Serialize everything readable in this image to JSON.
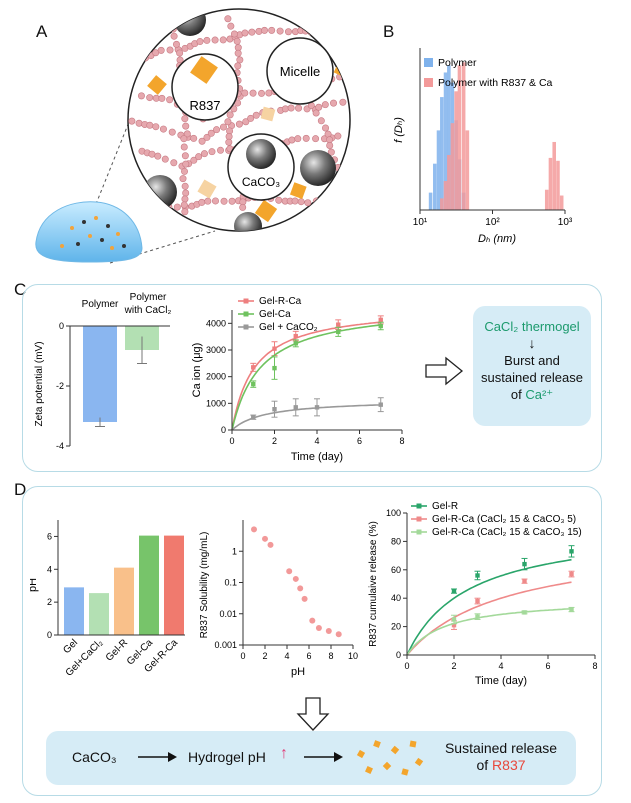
{
  "panels": {
    "a": {
      "letter": "A",
      "labels": {
        "r837": "R837",
        "micelle": "Micelle",
        "caco3": "CaCO₃"
      }
    },
    "b": {
      "letter": "B",
      "chart_data": {
        "type": "bar",
        "xscale": "log",
        "xlim": [
          10,
          1000
        ],
        "xticks": [
          "10¹",
          "10²",
          "10³"
        ],
        "xlabel": "Dₕ (nm)",
        "ylabel": "f (Dₕ)",
        "legend": "top-right",
        "series": [
          {
            "name": "Polymer",
            "color": "#7fb2ec",
            "x": [
              14,
              16,
              18,
              20,
              22.5,
              25,
              28,
              31.5,
              35,
              40
            ],
            "values": [
              0.12,
              0.32,
              0.55,
              0.78,
              0.95,
              1.0,
              0.88,
              0.62,
              0.35,
              0.12
            ]
          },
          {
            "name": "Polymer with R837 & Ca",
            "color": "#f39a9a",
            "x": [
              20,
              22.5,
              25,
              28,
              31.5,
              35,
              40,
              45,
              560,
              630,
              710,
              800,
              900
            ],
            "values": [
              0.08,
              0.2,
              0.38,
              0.6,
              0.82,
              1.0,
              1.02,
              0.55,
              0.14,
              0.36,
              0.47,
              0.34,
              0.1
            ]
          }
        ]
      }
    },
    "c": {
      "letter": "C",
      "zeta": {
        "type": "bar",
        "ylabel": "Zeta potential (mV)",
        "ylim": [
          -4,
          0
        ],
        "yticks": [
          "0",
          "-2",
          "-4"
        ],
        "categories": [
          "Polymer",
          "Polymer with CaCl₂"
        ],
        "values": [
          -3.2,
          -0.8
        ],
        "errors": [
          0.15,
          0.45
        ],
        "colors": [
          "#8ab6f0",
          "#b3e0b3"
        ]
      },
      "ca_release": {
        "type": "line",
        "xlabel": "Time (day)",
        "ylabel": "Ca ion (μg)",
        "xlim": [
          0,
          8
        ],
        "ylim": [
          0,
          4500
        ],
        "xticks": [
          "0",
          "2",
          "4",
          "6",
          "8"
        ],
        "yticks": [
          "0",
          "1000",
          "2000",
          "3000",
          "4000"
        ],
        "legend": "top-left",
        "series": [
          {
            "name": "Gel-R-Ca",
            "color": "#ee7f7f",
            "x": [
              1,
              2,
              3,
              5,
              7
            ],
            "values": [
              2350,
              3050,
              3520,
              3950,
              4130
            ],
            "errors": [
              150,
              260,
              180,
              180,
              150
            ],
            "fit": {
              "a": 4650,
              "b": 1.05
            }
          },
          {
            "name": "Gel-Ca",
            "color": "#6fc25f",
            "x": [
              1,
              2,
              3,
              5,
              7
            ],
            "values": [
              1720,
              2320,
              3250,
              3680,
              3900
            ],
            "errors": [
              120,
              420,
              130,
              170,
              140
            ],
            "fit": {
              "a": 4700,
              "b": 1.35
            }
          },
          {
            "name": "Gel + CaCO₂",
            "color": "#999999",
            "x": [
              1,
              2,
              3,
              4,
              7
            ],
            "values": [
              480,
              780,
              850,
              850,
              950
            ],
            "errors": [
              80,
              300,
              320,
              320,
              260
            ],
            "fit": {
              "a": 1150,
              "b": 1.55
            }
          }
        ]
      },
      "summary": {
        "title": "CaCl₂ thermogel",
        "arrow": "↓",
        "line1": "Burst and",
        "line2": "sustained release",
        "line3_prefix": "of ",
        "line3_ion": "Ca²⁺"
      }
    },
    "d": {
      "letter": "D",
      "ph": {
        "type": "bar",
        "ylabel": "pH",
        "ylim": [
          0,
          7
        ],
        "yticks": [
          "0",
          "2",
          "4",
          "6"
        ],
        "categories": [
          "Gel",
          "Gel+CaCl₂",
          "Gel-R",
          "Gel-Ca",
          "Gel-R-Ca"
        ],
        "values": [
          2.9,
          2.55,
          4.1,
          6.05,
          6.05
        ],
        "colors": [
          "#8ab6f0",
          "#b3e0b3",
          "#f9c08a",
          "#77c46a",
          "#f07a6e"
        ]
      },
      "solubility": {
        "type": "scatter",
        "yscale": "log",
        "xlabel": "pH",
        "ylabel": "R837 Solubility (mg/mL)",
        "xlim": [
          0,
          10
        ],
        "ylim": [
          0.001,
          10
        ],
        "xticks": [
          "0",
          "2",
          "4",
          "6",
          "8",
          "10"
        ],
        "yticks": [
          "0.001",
          "0.01",
          "0.1",
          "1"
        ],
        "color": "#f29999",
        "x": [
          1,
          2,
          2.5,
          4.2,
          4.8,
          5.2,
          5.6,
          6.3,
          6.9,
          7.8,
          8.7
        ],
        "values": [
          5.0,
          2.5,
          1.6,
          0.23,
          0.13,
          0.065,
          0.03,
          0.006,
          0.0035,
          0.0028,
          0.0022
        ]
      },
      "r837_release": {
        "type": "line",
        "xlabel": "Time (day)",
        "ylabel": "R837 cumulaive release (%)",
        "xlim": [
          0,
          8
        ],
        "ylim": [
          0,
          100
        ],
        "xticks": [
          "0",
          "2",
          "4",
          "6",
          "8"
        ],
        "yticks": [
          "0",
          "20",
          "40",
          "60",
          "80",
          "100"
        ],
        "legend": "top-left",
        "series": [
          {
            "name": "Gel-R",
            "color": "#2aa56a",
            "x": [
              2,
              3,
              5,
              7
            ],
            "values": [
              45,
              56,
              64,
              73
            ],
            "errors": [
              1.5,
              3,
              4,
              4
            ],
            "fit": {
              "a": 92,
              "b": 2.6
            }
          },
          {
            "name": "Gel-R-Ca (CaCl₂ 15 & CaCO₃ 5)",
            "color": "#ef8a8a",
            "x": [
              2,
              3,
              5,
              7
            ],
            "values": [
              21,
              38,
              52,
              57
            ],
            "errors": [
              3,
              2,
              1.5,
              2
            ],
            "fit": {
              "a": 82,
              "b": 4.2
            }
          },
          {
            "name": "Gel-R-Ca (CaCl₂ 15 & CaCO₃ 15)",
            "color": "#a3d99a",
            "x": [
              2,
              3,
              5,
              7
            ],
            "values": [
              25,
              27,
              30,
              32
            ],
            "errors": [
              3,
              2,
              1,
              1.5
            ],
            "fit": {
              "a": 40,
              "b": 1.6
            }
          }
        ]
      },
      "flow": {
        "caco3": "CaCO₃",
        "hydrogel": "Hydrogel pH",
        "up_arrow": "↑",
        "outcome1": "Sustained release",
        "outcome2_prefix": "of ",
        "outcome2_drug": "R837"
      }
    }
  }
}
